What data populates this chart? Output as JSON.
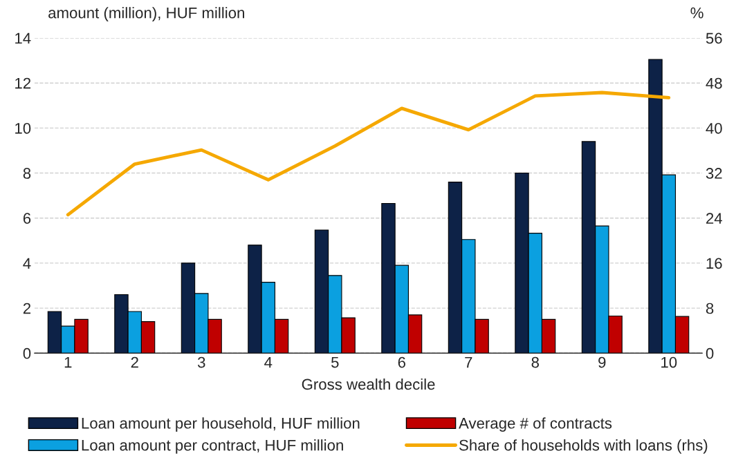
{
  "chart_data": {
    "type": "bar",
    "categories": [
      "1",
      "2",
      "3",
      "4",
      "5",
      "6",
      "7",
      "8",
      "9",
      "10"
    ],
    "xlabel": "Gross wealth decile",
    "ylabel": "amount (million), HUF million",
    "y2label": "%",
    "ylim": [
      0,
      14
    ],
    "yticks": [
      0,
      2,
      4,
      6,
      8,
      10,
      12,
      14
    ],
    "y2lim": [
      0,
      56
    ],
    "y2ticks": [
      0,
      8,
      16,
      24,
      32,
      40,
      48,
      56
    ],
    "grid": "y",
    "legend": "bottom",
    "series": [
      {
        "name": "Loan amount per household, HUF million",
        "color": "#0d2247",
        "values": [
          1.85,
          2.6,
          4.0,
          4.8,
          5.47,
          6.65,
          7.6,
          8.0,
          9.4,
          13.05
        ]
      },
      {
        "name": "Loan amount per contract, HUF million",
        "color": "#0ba0e0",
        "values": [
          1.2,
          1.85,
          2.65,
          3.15,
          3.45,
          3.9,
          5.05,
          5.33,
          5.65,
          7.92
        ]
      },
      {
        "name": "Average # of contracts",
        "color": "#c00000",
        "values": [
          1.5,
          1.4,
          1.5,
          1.5,
          1.57,
          1.7,
          1.5,
          1.5,
          1.65,
          1.63
        ]
      },
      {
        "name": "Share of households with loans (rhs)",
        "color": "#f5a800",
        "type": "line",
        "axis": "y2",
        "values": [
          24.6,
          33.6,
          36.1,
          30.8,
          36.8,
          43.5,
          39.7,
          45.7,
          46.3,
          45.4
        ]
      }
    ]
  }
}
